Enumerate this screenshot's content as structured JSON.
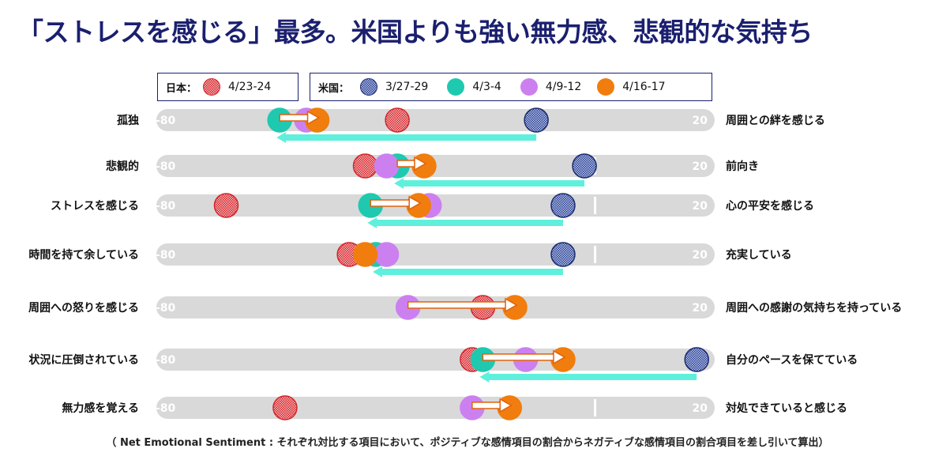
{
  "title": "「ストレスを感じる」最多。米国よりも強い無力感、悲観的な気持ち",
  "footnote": "（ Net Emotional Sentiment : それぞれ対比する項目において、ポジティブな感情項目の割合からネガティブな感情項目の割合項目を差し引いて算出）",
  "legend": {
    "japan": {
      "title": "日本：",
      "items": [
        {
          "label": "4/23-24",
          "series": "jp_0423"
        }
      ]
    },
    "us": {
      "title": "米国：",
      "items": [
        {
          "label": "3/27-29",
          "series": "us_0327"
        },
        {
          "label": "4/3-4",
          "series": "us_0403"
        },
        {
          "label": "4/9-12",
          "series": "us_0409"
        },
        {
          "label": "4/16-17",
          "series": "us_0416"
        }
      ]
    }
  },
  "colors": {
    "jp_0423": "#e8464a",
    "us_0327": "#2b3f8f",
    "us_0403": "#1ec9b0",
    "us_0409": "#cc80f0",
    "us_0416": "#f07d0d",
    "track": "#d9d9d9",
    "arrow": "#5ef0dc",
    "orange_arrow": "#e0620c"
  },
  "chart_data": {
    "type": "scatter",
    "axis_range": [
      -80,
      20
    ],
    "axis_min_label": "-80",
    "axis_max_label": "20",
    "rows": [
      {
        "left": "孤独",
        "right": "周囲との絆を感じる",
        "jp_0423": -37,
        "us_0327": -11,
        "us_0403": -59,
        "us_0409": -54,
        "us_0416": -52,
        "zero_line": false
      },
      {
        "left": "悲観的",
        "right": "前向き",
        "jp_0423": -43,
        "us_0327": -2,
        "us_0403": -37,
        "us_0409": -39,
        "us_0416": -32,
        "zero_line": true
      },
      {
        "left": "ストレスを感じる",
        "right": "心の平安を感じる",
        "jp_0423": -69,
        "us_0327": -6,
        "us_0403": -42,
        "us_0409": -31,
        "us_0416": -33,
        "zero_line": true
      },
      {
        "left": "時間を持て余している",
        "right": "充実している",
        "jp_0423": -46,
        "us_0327": -6,
        "us_0403": -41,
        "us_0409": -39,
        "us_0416": -43,
        "zero_line": true
      },
      {
        "left": "周囲への怒りを感じる",
        "right": "周囲への感謝の気持ちを持っている",
        "jp_0423": -21,
        "us_0327": null,
        "us_0403": null,
        "us_0409": -35,
        "us_0416": -15,
        "zero_line": false
      },
      {
        "left": "状況に圧倒されている",
        "right": "自分のペースを保てている",
        "jp_0423": -23,
        "us_0327": 19,
        "us_0403": -21,
        "us_0409": -13,
        "us_0416": -6,
        "zero_line": false
      },
      {
        "left": "無力感を覚える",
        "right": "対処できていると感じる",
        "jp_0423": -58,
        "us_0327": null,
        "us_0403": null,
        "us_0409": -23,
        "us_0416": -16,
        "zero_line": true
      }
    ]
  }
}
